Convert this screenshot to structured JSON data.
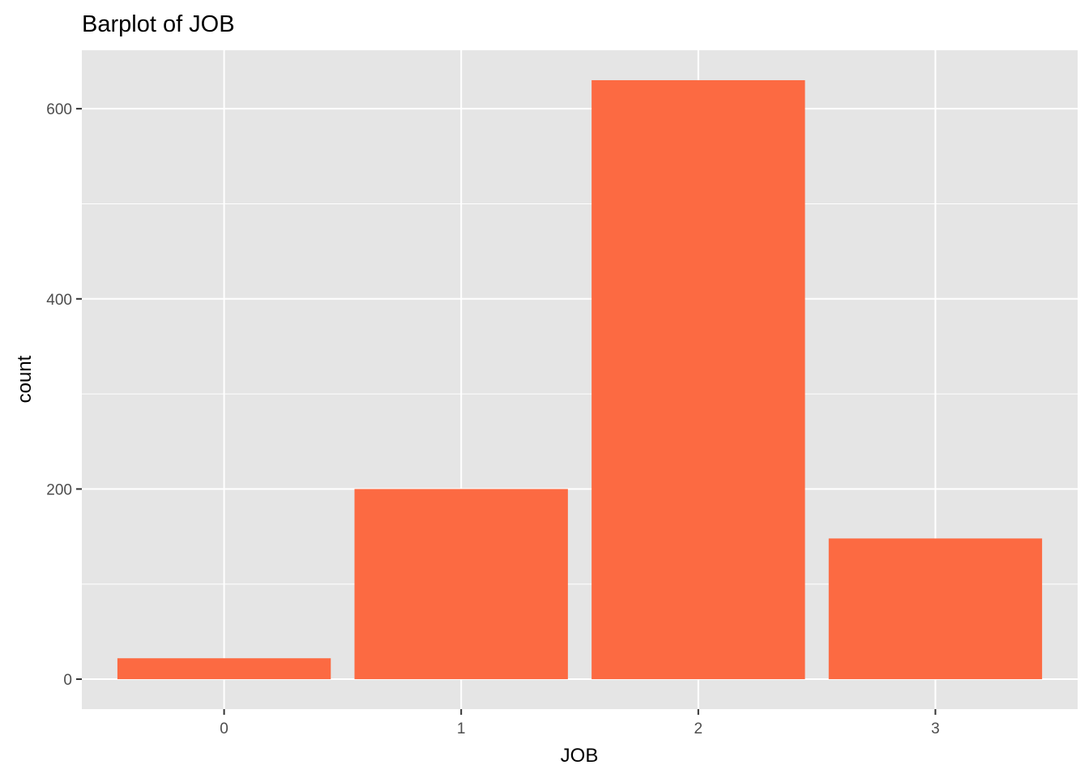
{
  "chart_data": {
    "type": "bar",
    "title": "Barplot of JOB",
    "xlabel": "JOB",
    "ylabel": "count",
    "categories": [
      "0",
      "1",
      "2",
      "3"
    ],
    "values": [
      22,
      200,
      630,
      148
    ],
    "ylim": [
      -31.5,
      661.5
    ],
    "yticks": [
      0,
      200,
      400,
      600
    ],
    "grid": true,
    "legend": "none",
    "colors": {
      "bar": "#FC6A42",
      "panel_background": "#E5E5E5",
      "grid_major": "#FFFFFF",
      "tick_mark": "#333333"
    }
  }
}
